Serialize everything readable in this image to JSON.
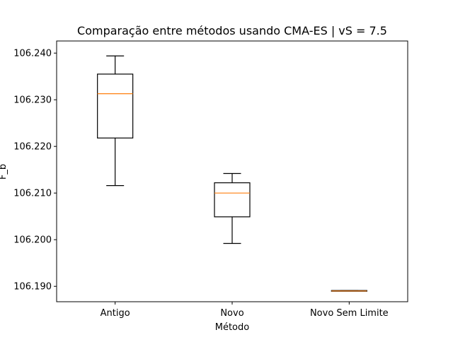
{
  "chart_data": {
    "type": "boxplot",
    "title": "Comparação entre métodos usando CMA-ES | vS = 7.5",
    "xlabel": "Método",
    "ylabel": "F_b",
    "categories": [
      "Antigo",
      "Novo",
      "Novo Sem Limite"
    ],
    "boxes": [
      {
        "category": "Antigo",
        "whisker_low": 106.2116,
        "q1": 106.2218,
        "median": 106.2313,
        "q3": 106.2355,
        "whisker_high": 106.2394
      },
      {
        "category": "Novo",
        "whisker_low": 106.1992,
        "q1": 106.2049,
        "median": 106.21,
        "q3": 106.2122,
        "whisker_high": 106.2142
      },
      {
        "category": "Novo Sem Limite",
        "whisker_low": 106.189,
        "q1": 106.189,
        "median": 106.189,
        "q3": 106.1891,
        "whisker_high": 106.1891
      }
    ],
    "y_ticks": [
      106.19,
      106.2,
      106.21,
      106.22,
      106.23,
      106.24
    ],
    "y_tick_labels": [
      "106.190",
      "106.200",
      "106.210",
      "106.220",
      "106.230",
      "106.240"
    ],
    "ylim": [
      106.1867,
      106.2426
    ],
    "colors": {
      "box": "#000000",
      "median": "#ff7f0e",
      "background": "#ffffff"
    },
    "grid": false
  }
}
